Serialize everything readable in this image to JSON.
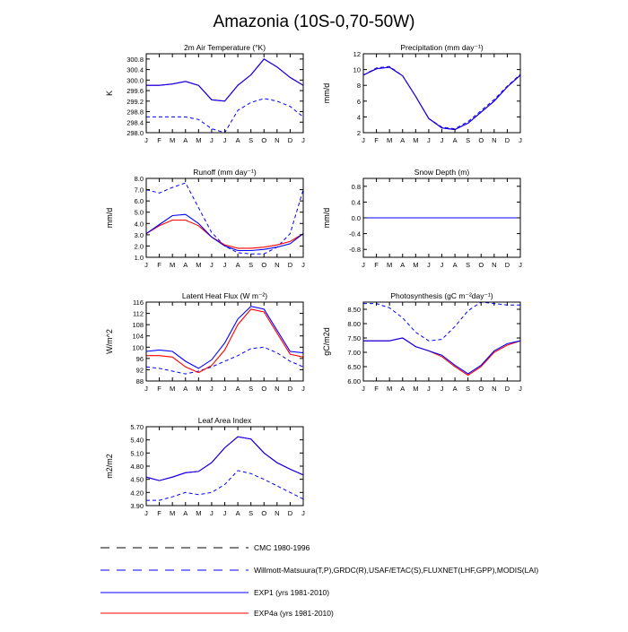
{
  "title": "Amazonia (10S-0,70-50W)",
  "months": [
    "J",
    "F",
    "M",
    "A",
    "M",
    "J",
    "J",
    "A",
    "S",
    "O",
    "N",
    "D",
    "J"
  ],
  "colors": {
    "axis": "#000000",
    "exp1": "#0000ff",
    "exp4a": "#ff0000",
    "cmc": "#000000",
    "obs": "#0000ff"
  },
  "legend": [
    {
      "key": "cmc",
      "label": "CMC 1980-1996",
      "dash": true
    },
    {
      "key": "obs",
      "label": "Willmott-Matsuura(T,P),GRDC(R),USAF/ETAC(S),FLUXNET(LHF,GPP),MODIS(LAI)",
      "dash": true
    },
    {
      "key": "exp1",
      "label": "EXP1 (yrs 1981-2010)",
      "dash": false
    },
    {
      "key": "exp4a",
      "label": "EXP4a (yrs 1981-2010)",
      "dash": false
    }
  ],
  "chart_data": [
    {
      "type": "line",
      "id": "temperature",
      "title": "2m Air Temperature (°K)",
      "ylabel": "K",
      "ylim": [
        298.0,
        301.0
      ],
      "yticks": [
        "298.0",
        "298.4",
        "298.8",
        "299.2",
        "299.6",
        "300.0",
        "300.4",
        "300.8"
      ],
      "series": [
        {
          "name": "EXP1 (yrs 1981-2010)",
          "key": "exp1",
          "values": [
            299.8,
            299.8,
            299.85,
            299.95,
            299.8,
            299.25,
            299.2,
            299.8,
            300.2,
            300.8,
            300.5,
            300.1,
            299.8
          ]
        },
        {
          "name": "EXP4a (yrs 1981-2010)",
          "key": "exp4a",
          "values": [
            299.8,
            299.8,
            299.85,
            299.95,
            299.8,
            299.25,
            299.2,
            299.8,
            300.2,
            300.8,
            300.5,
            300.1,
            299.8
          ]
        },
        {
          "name": "Willmott-Matsuura",
          "key": "obs",
          "values": [
            298.6,
            298.6,
            298.6,
            298.6,
            298.5,
            298.15,
            298.0,
            298.85,
            299.15,
            299.3,
            299.2,
            299.0,
            298.6
          ]
        }
      ]
    },
    {
      "type": "line",
      "id": "precipitation",
      "title": "Precipitation (mm day⁻¹)",
      "ylabel": "mm/d",
      "ylim": [
        2,
        12
      ],
      "yticks": [
        "2",
        "4",
        "6",
        "8",
        "10",
        "12"
      ],
      "series": [
        {
          "name": "EXP1 (yrs 1981-2010)",
          "key": "exp1",
          "values": [
            9.3,
            10.1,
            10.3,
            9.2,
            6.6,
            3.8,
            2.6,
            2.4,
            3.2,
            4.6,
            6.0,
            7.8,
            9.3
          ]
        },
        {
          "name": "EXP4a (yrs 1981-2010)",
          "key": "exp4a",
          "values": [
            9.3,
            10.1,
            10.3,
            9.2,
            6.6,
            3.8,
            2.6,
            2.4,
            3.2,
            4.6,
            6.0,
            7.8,
            9.3
          ]
        },
        {
          "name": "Willmott-Matsuura",
          "key": "obs",
          "values": [
            9.3,
            10.2,
            10.4,
            9.2,
            6.6,
            3.8,
            2.7,
            2.5,
            3.4,
            4.8,
            6.2,
            7.9,
            9.4
          ]
        }
      ]
    },
    {
      "type": "line",
      "id": "runoff",
      "title": "Runoff (mm day⁻¹)",
      "ylabel": "mm/d",
      "ylim": [
        1.0,
        8.0
      ],
      "yticks": [
        "1.0",
        "2.0",
        "3.0",
        "4.0",
        "5.0",
        "6.0",
        "7.0",
        "8.0"
      ],
      "series": [
        {
          "name": "EXP1 (yrs 1981-2010)",
          "key": "exp1",
          "values": [
            3.1,
            3.9,
            4.7,
            4.8,
            4.0,
            2.8,
            2.0,
            1.6,
            1.6,
            1.7,
            1.9,
            2.2,
            3.1
          ]
        },
        {
          "name": "EXP4a (yrs 1981-2010)",
          "key": "exp4a",
          "values": [
            3.1,
            3.8,
            4.3,
            4.3,
            3.8,
            2.8,
            2.1,
            1.8,
            1.8,
            1.9,
            2.1,
            2.4,
            3.1
          ]
        },
        {
          "name": "GRDC",
          "key": "obs",
          "values": [
            7.0,
            6.7,
            7.2,
            7.6,
            5.4,
            3.2,
            2.0,
            1.4,
            1.3,
            1.3,
            1.9,
            3.1,
            7.0
          ]
        }
      ]
    },
    {
      "type": "line",
      "id": "snow",
      "title": "Snow Depth (m)",
      "ylabel": "mm/d",
      "ylim": [
        -1.0,
        1.0
      ],
      "yticks": [
        "-0.8",
        "-0.4",
        "0.0",
        "0.4",
        "0.8"
      ],
      "series": [
        {
          "name": "EXP1 (yrs 1981-2010)",
          "key": "exp1",
          "values": [
            0,
            0,
            0,
            0,
            0,
            0,
            0,
            0,
            0,
            0,
            0,
            0,
            0
          ]
        },
        {
          "name": "EXP4a (yrs 1981-2010)",
          "key": "exp4a",
          "values": [
            0,
            0,
            0,
            0,
            0,
            0,
            0,
            0,
            0,
            0,
            0,
            0,
            0
          ]
        },
        {
          "name": "USAF/ETAC",
          "key": "obs",
          "values": [
            0,
            0,
            0,
            0,
            0,
            0,
            0,
            0,
            0,
            0,
            0,
            0,
            0
          ]
        }
      ]
    },
    {
      "type": "line",
      "id": "latent",
      "title": "Latent Heat Flux (W m⁻²)",
      "ylabel": "W/m^2",
      "ylim": [
        88,
        116
      ],
      "yticks": [
        "88",
        "92",
        "96",
        "100",
        "104",
        "108",
        "112",
        "116"
      ],
      "series": [
        {
          "name": "EXP1 (yrs 1981-2010)",
          "key": "exp1",
          "values": [
            98.5,
            99.0,
            98.5,
            95.0,
            92.5,
            95.5,
            101.5,
            110.0,
            114.5,
            113.5,
            106.0,
            98.5,
            98.0
          ]
        },
        {
          "name": "EXP4a (yrs 1981-2010)",
          "key": "exp4a",
          "values": [
            97.0,
            97.0,
            96.5,
            93.0,
            91.0,
            93.5,
            99.0,
            108.0,
            113.5,
            112.5,
            105.0,
            97.5,
            96.5
          ]
        },
        {
          "name": "FLUXNET",
          "key": "obs",
          "values": [
            93.0,
            92.5,
            91.5,
            90.5,
            91.5,
            93.0,
            95.0,
            97.0,
            99.5,
            100.0,
            98.0,
            95.0,
            93.0
          ]
        }
      ]
    },
    {
      "type": "line",
      "id": "photosynthesis",
      "title": "Photosynthesis (gC m⁻²day⁻¹)",
      "ylabel": "gC/m2d",
      "ylim": [
        6.0,
        8.75
      ],
      "yticks": [
        "6.00",
        "6.50",
        "7.00",
        "7.50",
        "8.00",
        "8.50"
      ],
      "series": [
        {
          "name": "EXP1 (yrs 1981-2010)",
          "key": "exp1",
          "values": [
            7.4,
            7.4,
            7.4,
            7.5,
            7.2,
            7.05,
            6.9,
            6.55,
            6.25,
            6.55,
            7.05,
            7.3,
            7.4
          ]
        },
        {
          "name": "EXP4a (yrs 1981-2010)",
          "key": "exp4a",
          "values": [
            7.4,
            7.4,
            7.4,
            7.5,
            7.2,
            7.05,
            6.85,
            6.5,
            6.2,
            6.5,
            7.0,
            7.25,
            7.4
          ]
        },
        {
          "name": "FLUXNET",
          "key": "obs",
          "values": [
            8.7,
            8.7,
            8.55,
            8.2,
            7.7,
            7.4,
            7.45,
            7.9,
            8.45,
            8.75,
            8.7,
            8.65,
            8.65
          ]
        }
      ]
    },
    {
      "type": "line",
      "id": "lai",
      "title": "Leaf Area Index",
      "ylabel": "m2/m2",
      "ylim": [
        3.9,
        5.7
      ],
      "yticks": [
        "3.90",
        "4.20",
        "4.50",
        "4.80",
        "5.10",
        "5.40",
        "5.70"
      ],
      "series": [
        {
          "name": "EXP1 (yrs 1981-2010)",
          "key": "exp1",
          "values": [
            4.55,
            4.47,
            4.55,
            4.65,
            4.68,
            4.88,
            5.22,
            5.47,
            5.42,
            5.1,
            4.88,
            4.73,
            4.6
          ]
        },
        {
          "name": "EXP4a (yrs 1981-2010)",
          "key": "exp4a",
          "values": [
            4.55,
            4.47,
            4.55,
            4.65,
            4.68,
            4.88,
            5.22,
            5.47,
            5.42,
            5.1,
            4.88,
            4.73,
            4.6
          ]
        },
        {
          "name": "MODIS",
          "key": "obs",
          "values": [
            4.02,
            4.02,
            4.1,
            4.2,
            4.15,
            4.2,
            4.38,
            4.7,
            4.63,
            4.5,
            4.35,
            4.2,
            4.05
          ]
        }
      ]
    }
  ]
}
